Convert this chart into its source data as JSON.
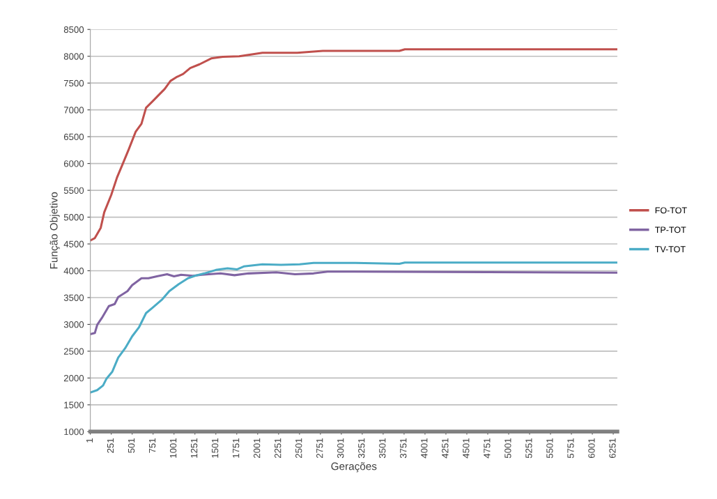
{
  "chart_data": {
    "type": "line",
    "xlabel": "Gerações",
    "ylabel": "Função Objetivo",
    "xlim": [
      1,
      6300
    ],
    "xticks": [
      1,
      251,
      501,
      751,
      1001,
      1251,
      1501,
      1751,
      2001,
      2251,
      2501,
      2751,
      3001,
      3251,
      3501,
      3751,
      4001,
      4251,
      4501,
      4751,
      5001,
      5251,
      5501,
      5751,
      6001,
      6251
    ],
    "ylim": [
      1000,
      8500
    ],
    "yticks": [
      1000,
      1500,
      2000,
      2500,
      3000,
      3500,
      4000,
      4500,
      5000,
      5500,
      6000,
      6500,
      7000,
      7500,
      8000,
      8500
    ],
    "grid": "y",
    "legend": "right",
    "line_style": "solid",
    "marker": "none",
    "series": [
      {
        "name": "FO-TOT",
        "color": "#c0504d",
        "x": [
          1,
          55,
          125,
          167,
          250,
          320,
          390,
          459,
          542,
          612,
          667,
          751,
          820,
          890,
          959,
          1030,
          1110,
          1195,
          1306,
          1446,
          1585,
          1780,
          2058,
          2475,
          2780,
          3170,
          3695,
          3760,
          6300
        ],
        "values": [
          4565,
          4610,
          4800,
          5090,
          5410,
          5740,
          6000,
          6260,
          6590,
          6740,
          7040,
          7170,
          7280,
          7390,
          7540,
          7610,
          7670,
          7780,
          7850,
          7960,
          7990,
          8000,
          8065,
          8065,
          8100,
          8100,
          8100,
          8130,
          8130
        ]
      },
      {
        "name": "TP-TOT",
        "color": "#8064a2",
        "x": [
          1,
          55,
          83,
          139,
          222,
          292,
          334,
          445,
          500,
          612,
          695,
          806,
          918,
          1001,
          1085,
          1224,
          1335,
          1557,
          1724,
          1891,
          2224,
          2447,
          2669,
          2836,
          3114,
          6300
        ],
        "values": [
          2817,
          2839,
          2990,
          3120,
          3340,
          3380,
          3510,
          3620,
          3730,
          3860,
          3860,
          3900,
          3935,
          3895,
          3925,
          3905,
          3925,
          3950,
          3917,
          3950,
          3970,
          3935,
          3950,
          3983,
          3983,
          3965
        ]
      },
      {
        "name": "TV-TOT",
        "color": "#4bacc6",
        "x": [
          1,
          83,
          153,
          195,
          264,
          334,
          417,
          500,
          584,
          667,
          751,
          862,
          945,
          1057,
          1168,
          1251,
          1363,
          1502,
          1641,
          1752,
          1835,
          2058,
          2280,
          2503,
          2669,
          3170,
          3695,
          3760,
          6300
        ],
        "values": [
          1730,
          1774,
          1860,
          1990,
          2120,
          2380,
          2555,
          2775,
          2950,
          3210,
          3320,
          3470,
          3620,
          3750,
          3860,
          3905,
          3950,
          4015,
          4045,
          4025,
          4080,
          4120,
          4110,
          4120,
          4145,
          4145,
          4130,
          4152,
          4152
        ]
      }
    ]
  }
}
